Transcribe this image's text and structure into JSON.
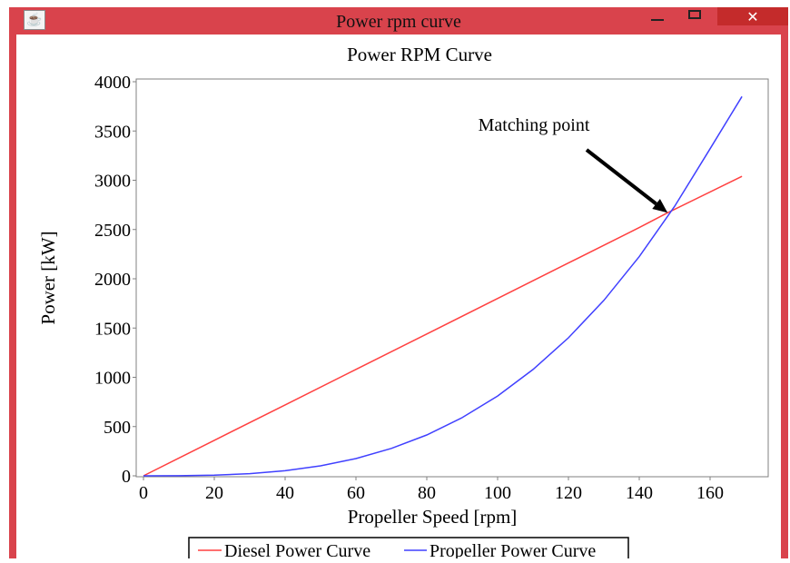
{
  "window": {
    "title": "Power rpm curve",
    "icons": {
      "app": "java-cup-icon",
      "minimize": "minimize-icon",
      "maximize": "maximize-icon",
      "close": "close-icon"
    },
    "close_glyph": "✕",
    "frame_color": "#d9434c"
  },
  "chart_data": {
    "type": "line",
    "title": "Power RPM Curve",
    "xlabel": "Propeller Speed [rpm]",
    "ylabel": "Power [kW]",
    "xlim": [
      0,
      178
    ],
    "ylim": [
      0,
      4000
    ],
    "xticks": [
      0,
      20,
      40,
      60,
      80,
      100,
      120,
      140,
      160
    ],
    "yticks": [
      0,
      500,
      1000,
      1500,
      2000,
      2500,
      3000,
      3500,
      4000
    ],
    "grid": false,
    "legend_position": "bottom",
    "annotation": {
      "text": "Matching point",
      "point": [
        148,
        2670
      ]
    },
    "series": [
      {
        "name": "Diesel Power Curve",
        "color": "#ff4040",
        "x": [
          0,
          20,
          40,
          60,
          80,
          100,
          120,
          140,
          148,
          169
        ],
        "y": [
          0,
          360,
          720,
          1080,
          1440,
          1800,
          2160,
          2520,
          2670,
          3040
        ]
      },
      {
        "name": "Propeller Power Curve",
        "color": "#4040ff",
        "x": [
          0,
          10,
          20,
          30,
          40,
          50,
          60,
          70,
          80,
          90,
          100,
          110,
          120,
          130,
          140,
          150,
          160,
          169
        ],
        "y": [
          0,
          0.8,
          6.5,
          22,
          52,
          101,
          175,
          278,
          415,
          591,
          810,
          1079,
          1401,
          1781,
          2225,
          2736,
          3320,
          3850
        ]
      }
    ]
  }
}
